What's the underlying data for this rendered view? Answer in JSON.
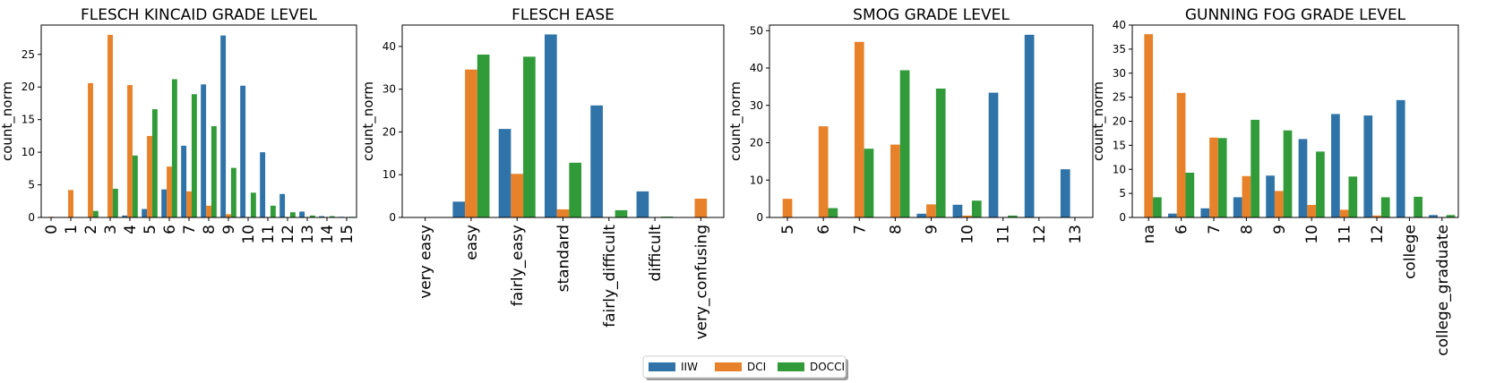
{
  "colors": {
    "IIW": "#2f73a8",
    "DCI": "#e8822a",
    "DOCCI": "#319b39"
  },
  "legend": {
    "items": [
      "IIW",
      "DCI",
      "DOCCI"
    ],
    "placement": "bottom-center"
  },
  "chart_data": [
    {
      "type": "bar",
      "title": "FLESCH KINCAID GRADE LEVEL",
      "ylabel": "count_norm",
      "ylim": [
        0,
        29.5
      ],
      "yticks": [
        0,
        5,
        10,
        15,
        20,
        25
      ],
      "categories": [
        "0",
        "1",
        "2",
        "3",
        "4",
        "5",
        "6",
        "7",
        "8",
        "9",
        "10",
        "11",
        "12",
        "13",
        "14",
        "15"
      ],
      "series": [
        {
          "name": "IIW",
          "values": [
            0,
            0,
            0,
            0,
            0.3,
            1.3,
            4.3,
            11,
            20.4,
            27.9,
            20.2,
            10,
            3.6,
            0.9,
            0.2,
            0.1
          ]
        },
        {
          "name": "DCI",
          "values": [
            0.1,
            4.2,
            20.6,
            28,
            20.3,
            12.5,
            7.8,
            4,
            1.8,
            0.5,
            0,
            0,
            0,
            0,
            0,
            0
          ]
        },
        {
          "name": "DOCCI",
          "values": [
            0,
            0,
            1,
            4.4,
            9.5,
            16.6,
            21.2,
            18.9,
            14,
            7.6,
            3.8,
            1.8,
            0.8,
            0.3,
            0.2,
            0.1
          ]
        }
      ]
    },
    {
      "type": "bar",
      "title": "FLESCH EASE",
      "ylabel": "count_norm",
      "ylim": [
        0,
        45
      ],
      "yticks": [
        0,
        10,
        20,
        30,
        40
      ],
      "categories": [
        "very easy",
        "easy",
        "fairly_easy",
        "standard",
        "fairly_difficult",
        "difficult",
        "very_confusing"
      ],
      "series": [
        {
          "name": "IIW",
          "values": [
            0,
            3.7,
            20.7,
            42.8,
            26.2,
            6.1,
            0
          ]
        },
        {
          "name": "DCI",
          "values": [
            0,
            34.6,
            10.2,
            1.9,
            0,
            0,
            4.4
          ]
        },
        {
          "name": "DOCCI",
          "values": [
            0,
            38.1,
            37.6,
            12.8,
            1.7,
            0.2,
            0
          ]
        }
      ]
    },
    {
      "type": "bar",
      "title": "SMOG GRADE LEVEL",
      "ylabel": "count_norm",
      "ylim": [
        0,
        51.5
      ],
      "yticks": [
        0,
        10,
        20,
        30,
        40,
        50
      ],
      "categories": [
        "5",
        "6",
        "7",
        "8",
        "9",
        "10",
        "11",
        "12",
        "13"
      ],
      "series": [
        {
          "name": "IIW",
          "values": [
            0,
            0,
            0,
            0,
            1,
            3.4,
            33.4,
            48.9,
            12.9
          ]
        },
        {
          "name": "DCI",
          "values": [
            5,
            24.4,
            47,
            19.5,
            3.5,
            0.5,
            0,
            0,
            0
          ]
        },
        {
          "name": "DOCCI",
          "values": [
            0,
            2.5,
            18.4,
            39.4,
            34.5,
            4.5,
            0.5,
            0,
            0
          ]
        }
      ]
    },
    {
      "type": "bar",
      "title": "GUNNING FOG GRADE LEVEL",
      "ylabel": "count_norm",
      "ylim": [
        0,
        40
      ],
      "yticks": [
        0,
        5,
        10,
        15,
        20,
        25,
        30,
        35,
        40
      ],
      "categories": [
        "na",
        "6",
        "7",
        "8",
        "9",
        "10",
        "11",
        "12",
        "college",
        "college_graduate"
      ],
      "series": [
        {
          "name": "IIW",
          "values": [
            0,
            0.8,
            1.9,
            4.2,
            8.7,
            16.3,
            21.5,
            21.2,
            24.4,
            0.5
          ]
        },
        {
          "name": "DCI",
          "values": [
            38.1,
            25.9,
            16.6,
            8.6,
            5.5,
            2.6,
            1.6,
            0.4,
            0,
            0
          ]
        },
        {
          "name": "DOCCI",
          "values": [
            4.2,
            9.3,
            16.5,
            20.3,
            18.1,
            13.7,
            8.5,
            4.2,
            4.3,
            0.5
          ]
        }
      ]
    }
  ]
}
